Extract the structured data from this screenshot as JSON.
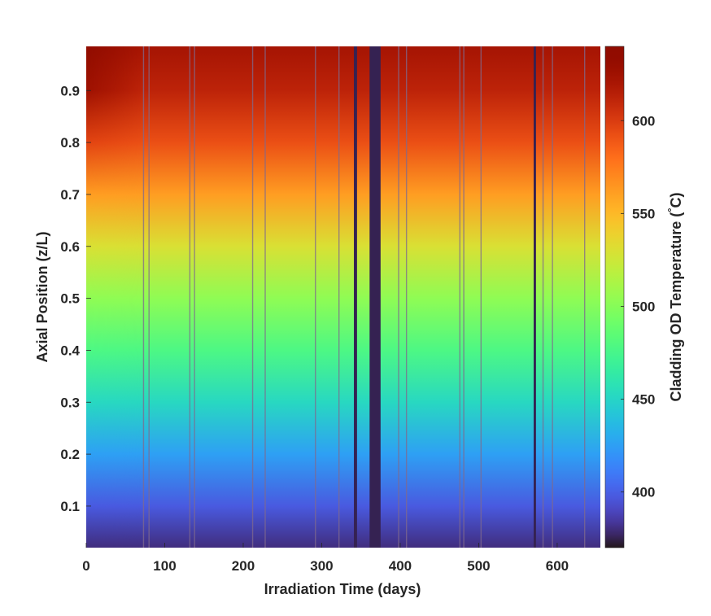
{
  "chart_data": {
    "type": "heatmap",
    "title": "",
    "xlabel": "Irradiation Time (days)",
    "ylabel": "Axial Position (z/L)",
    "xlim": [
      0,
      655
    ],
    "ylim": [
      0.02,
      0.985
    ],
    "x_ticks": [
      0,
      100,
      200,
      300,
      400,
      500,
      600
    ],
    "y_ticks": [
      0.1,
      0.2,
      0.3,
      0.4,
      0.5,
      0.6,
      0.7,
      0.8,
      0.9
    ],
    "colorbar": {
      "label": "Cladding OD Temperature (",
      "label_degree": "°",
      "label_unit": "C)",
      "colormap": "turbo",
      "clim": [
        370,
        640
      ],
      "ticks": [
        400,
        450,
        500,
        550,
        600
      ]
    },
    "temperature_profile": {
      "z": [
        0.02,
        0.1,
        0.2,
        0.3,
        0.4,
        0.5,
        0.6,
        0.7,
        0.8,
        0.9,
        0.985
      ],
      "temperature_C": [
        380,
        398,
        425,
        452,
        478,
        503,
        530,
        562,
        592,
        612,
        622
      ],
      "early_hotspot_days": [
        0,
        70
      ],
      "early_hotspot_peak_C": 640
    },
    "shutdown_periods_days": [
      [
        341,
        345
      ],
      [
        361,
        375
      ],
      [
        570,
        573
      ]
    ],
    "power_transient_days": [
      73,
      80,
      132,
      138,
      212,
      228,
      292,
      322,
      398,
      408,
      476,
      481,
      503,
      582,
      594,
      635
    ]
  }
}
